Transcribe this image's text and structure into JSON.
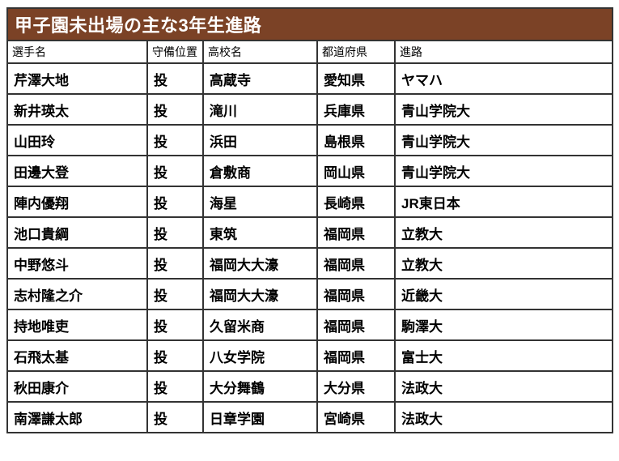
{
  "title": "甲子園未出場の主な3年生進路",
  "colors": {
    "title_bg": "#7B4226",
    "title_text": "#FFFFFF",
    "border": "#333333"
  },
  "table": {
    "columns": [
      "選手名",
      "守備位置",
      "高校名",
      "都道府県",
      "進路"
    ],
    "rows": [
      [
        "芹澤大地",
        "投",
        "高蔵寺",
        "愛知県",
        "ヤマハ"
      ],
      [
        "新井瑛太",
        "投",
        "滝川",
        "兵庫県",
        "青山学院大"
      ],
      [
        "山田玲",
        "投",
        "浜田",
        "島根県",
        "青山学院大"
      ],
      [
        "田邊大登",
        "投",
        "倉敷商",
        "岡山県",
        "青山学院大"
      ],
      [
        "陣内優翔",
        "投",
        "海星",
        "長崎県",
        "JR東日本"
      ],
      [
        "池口貴綱",
        "投",
        "東筑",
        "福岡県",
        "立教大"
      ],
      [
        "中野悠斗",
        "投",
        "福岡大大濠",
        "福岡県",
        "立教大"
      ],
      [
        "志村隆之介",
        "投",
        "福岡大大濠",
        "福岡県",
        "近畿大"
      ],
      [
        "持地唯吏",
        "投",
        "久留米商",
        "福岡県",
        "駒澤大"
      ],
      [
        "石飛太基",
        "投",
        "八女学院",
        "福岡県",
        "富士大"
      ],
      [
        "秋田康介",
        "投",
        "大分舞鶴",
        "大分県",
        "法政大"
      ],
      [
        "南澤謙太郎",
        "投",
        "日章学園",
        "宮崎県",
        "法政大"
      ]
    ]
  }
}
